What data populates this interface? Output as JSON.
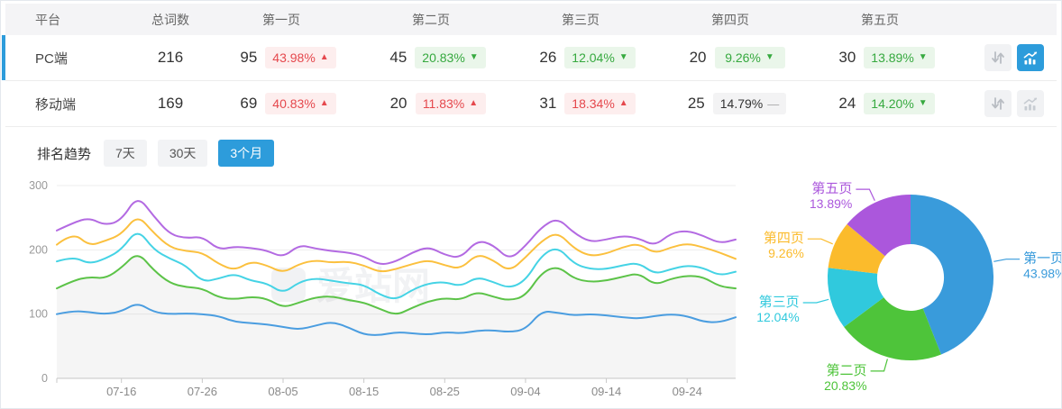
{
  "colors": {
    "accent": "#2d9cdb",
    "up_red": "#e5484d",
    "down_green": "#36a93f"
  },
  "table": {
    "headers": [
      "平台",
      "总词数",
      "第一页",
      "第二页",
      "第三页",
      "第四页",
      "第五页"
    ],
    "rows": [
      {
        "platform": "PC端",
        "total": "216",
        "selected": true,
        "trend_active": true,
        "pages": [
          {
            "count": "95",
            "pct": "43.98%",
            "arrow": "▲",
            "tone": "red"
          },
          {
            "count": "45",
            "pct": "20.83%",
            "arrow": "▼",
            "tone": "green"
          },
          {
            "count": "26",
            "pct": "12.04%",
            "arrow": "▼",
            "tone": "green"
          },
          {
            "count": "20",
            "pct": "9.26%",
            "arrow": "▼",
            "tone": "green"
          },
          {
            "count": "30",
            "pct": "13.89%",
            "arrow": "▼",
            "tone": "green"
          }
        ]
      },
      {
        "platform": "移动端",
        "total": "169",
        "selected": false,
        "trend_active": false,
        "pages": [
          {
            "count": "69",
            "pct": "40.83%",
            "arrow": "▲",
            "tone": "red"
          },
          {
            "count": "20",
            "pct": "11.83%",
            "arrow": "▲",
            "tone": "red"
          },
          {
            "count": "31",
            "pct": "18.34%",
            "arrow": "▲",
            "tone": "red"
          },
          {
            "count": "25",
            "pct": "14.79%",
            "arrow": "—",
            "tone": "gray"
          },
          {
            "count": "24",
            "pct": "14.20%",
            "arrow": "▼",
            "tone": "green"
          }
        ]
      }
    ]
  },
  "trend": {
    "title": "排名趋势",
    "tabs": [
      {
        "label": "7天",
        "active": false
      },
      {
        "label": "30天",
        "active": false
      },
      {
        "label": "3个月",
        "active": true
      }
    ]
  },
  "watermark": "爱站网",
  "chart_data": [
    {
      "type": "line",
      "title": "排名趋势 3个月 (cumulative keyword counts, PC端)",
      "mode": "cumulative",
      "days_per_point": 2,
      "ylim": [
        0,
        300
      ],
      "yticks": [
        0,
        100,
        200,
        300
      ],
      "x_labels": [
        "07-16",
        "07-26",
        "08-05",
        "08-15",
        "08-25",
        "09-04",
        "09-14",
        "09-24"
      ],
      "x_label_index": [
        4,
        9,
        14,
        19,
        24,
        29,
        34,
        39
      ],
      "grid": true,
      "legend": false,
      "series": [
        {
          "name": "第一页",
          "color": "#4a9de0",
          "area": false,
          "values": [
            100,
            105,
            103,
            100,
            104,
            118,
            103,
            100,
            101,
            100,
            97,
            88,
            86,
            84,
            80,
            76,
            82,
            88,
            80,
            68,
            67,
            72,
            70,
            68,
            72,
            70,
            74,
            75,
            72,
            76,
            105,
            102,
            98,
            100,
            98,
            95,
            93,
            97,
            100,
            97,
            88,
            87,
            95
          ]
        },
        {
          "name": "第二页",
          "color": "#5cc348",
          "area": true,
          "values": [
            140,
            152,
            158,
            155,
            172,
            197,
            168,
            148,
            142,
            140,
            126,
            123,
            127,
            124,
            110,
            118,
            126,
            128,
            122,
            118,
            108,
            98,
            110,
            120,
            125,
            122,
            135,
            127,
            121,
            128,
            165,
            175,
            155,
            150,
            152,
            158,
            164,
            145,
            155,
            160,
            158,
            143,
            140
          ]
        },
        {
          "name": "第三页",
          "color": "#45d3e5",
          "area": false,
          "values": [
            182,
            190,
            178,
            186,
            200,
            233,
            200,
            186,
            176,
            150,
            155,
            163,
            152,
            148,
            132,
            150,
            156,
            152,
            148,
            146,
            130,
            122,
            138,
            148,
            150,
            143,
            158,
            150,
            140,
            152,
            192,
            205,
            178,
            170,
            170,
            176,
            180,
            162,
            170,
            176,
            172,
            160,
            166
          ]
        },
        {
          "name": "第四页",
          "color": "#fbc03e",
          "area": false,
          "values": [
            208,
            228,
            206,
            214,
            224,
            255,
            226,
            204,
            198,
            196,
            178,
            168,
            182,
            176,
            164,
            178,
            184,
            180,
            182,
            176,
            165,
            170,
            178,
            184,
            176,
            170,
            194,
            184,
            166,
            188,
            214,
            228,
            202,
            190,
            194,
            204,
            210,
            194,
            204,
            210,
            204,
            196,
            186
          ]
        },
        {
          "name": "第五页",
          "color": "#b36ae2",
          "area": false,
          "values": [
            230,
            242,
            250,
            238,
            246,
            285,
            252,
            224,
            218,
            221,
            200,
            205,
            203,
            199,
            188,
            208,
            202,
            198,
            196,
            190,
            176,
            182,
            196,
            205,
            192,
            187,
            215,
            208,
            184,
            206,
            236,
            250,
            226,
            212,
            216,
            222,
            218,
            206,
            226,
            230,
            222,
            210,
            216
          ]
        }
      ]
    },
    {
      "type": "pie",
      "donut": true,
      "labels": [
        "第一页",
        "第二页",
        "第三页",
        "第四页",
        "第五页"
      ],
      "values": [
        43.98,
        20.83,
        12.04,
        9.26,
        13.89
      ],
      "display_values": [
        "43.98%",
        "20.83%",
        "12.04%",
        "9.26%",
        "13.89%"
      ],
      "colors": [
        "#399bdb",
        "#4ec43a",
        "#30c9dd",
        "#fbbb2c",
        "#ab57dc"
      ],
      "label_position": "outside"
    }
  ]
}
